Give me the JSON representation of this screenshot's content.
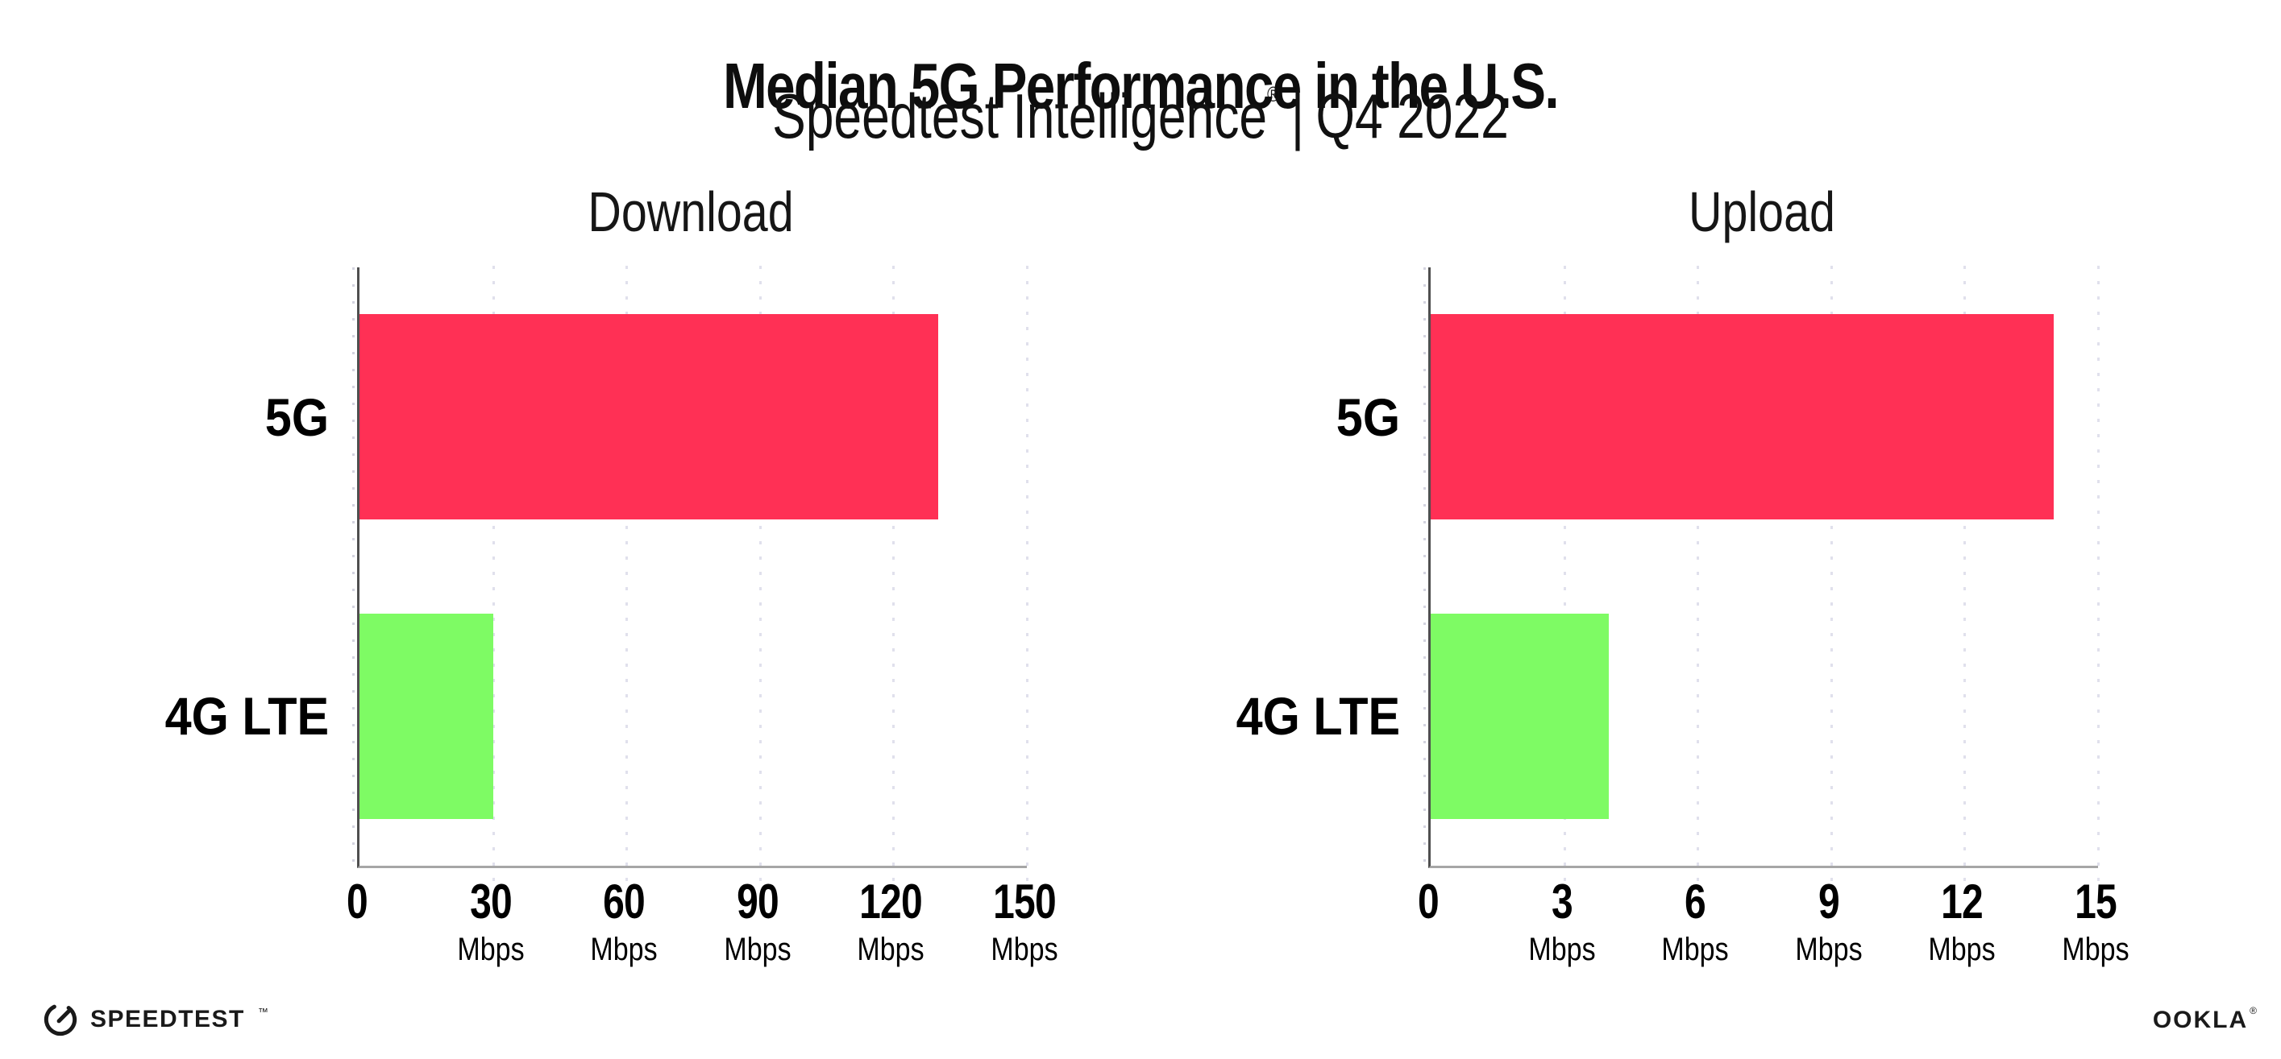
{
  "header": {
    "title": "Median 5G Performance in the U.S.",
    "subtitle": {
      "brand": "Speedtest Intelligence",
      "registered_mark": "®",
      "separator": "|",
      "period": "Q4 2022"
    }
  },
  "chart_data": [
    {
      "type": "bar",
      "orientation": "horizontal",
      "title": "Download",
      "categories": [
        "5G",
        "4G LTE"
      ],
      "values": [
        130,
        30
      ],
      "unit": "Mbps",
      "xlim": [
        0,
        150
      ],
      "xticks": [
        0,
        30,
        60,
        90,
        120,
        150
      ],
      "bar_colors": [
        "#FF3055",
        "#7EFB64"
      ],
      "grid": "dotted vertical gridline at each tick",
      "legend": "none"
    },
    {
      "type": "bar",
      "orientation": "horizontal",
      "title": "Upload",
      "categories": [
        "5G",
        "4G LTE"
      ],
      "values": [
        14,
        4
      ],
      "unit": "Mbps",
      "xlim": [
        0,
        15
      ],
      "xticks": [
        0,
        3,
        6,
        9,
        12,
        15
      ],
      "bar_colors": [
        "#FF3055",
        "#7EFB64"
      ],
      "grid": "dotted vertical gridline at each tick",
      "legend": "none"
    }
  ],
  "footer": {
    "speedtest_logo_text": "SPEEDTEST",
    "speedtest_trademark": "™",
    "ookla_logo_text": "OOKLA",
    "ookla_registered": "®"
  },
  "colors": {
    "bar_5g": "#FF3055",
    "bar_4g_lte": "#7EFB64",
    "gridline": "#E0E0EC",
    "x_axis": "#A6A6A6",
    "y_axis": "#4F4F4F",
    "text": "#0D0D0D",
    "background": "#FFFFFF"
  }
}
